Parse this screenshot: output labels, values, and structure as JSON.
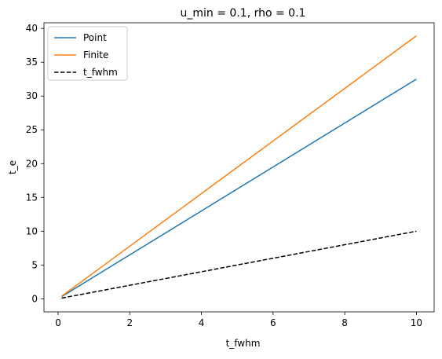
{
  "chart_data": {
    "type": "line",
    "title": "u_min = 0.1, rho = 0.1",
    "xlabel": "t_fwhm",
    "ylabel": "t_e",
    "xlim": [
      -0.395,
      10.495
    ],
    "ylim": [
      -1.935,
      40.835
    ],
    "x_ticks": [
      0,
      2,
      4,
      6,
      8,
      10
    ],
    "y_ticks": [
      0,
      5,
      10,
      15,
      20,
      25,
      30,
      35,
      40
    ],
    "grid": false,
    "legend_position": "top-left",
    "series": [
      {
        "name": "Point",
        "color": "#1f77b4",
        "dash": "solid",
        "x": [
          0.1,
          10
        ],
        "y": [
          0.325,
          32.5
        ]
      },
      {
        "name": "Finite",
        "color": "#ff7f0e",
        "dash": "solid",
        "x": [
          0.1,
          10
        ],
        "y": [
          0.389,
          38.9
        ]
      },
      {
        "name": "t_fwhm",
        "color": "#000000",
        "dash": "dashed",
        "x": [
          0.1,
          10
        ],
        "y": [
          0.1,
          10
        ]
      }
    ]
  }
}
